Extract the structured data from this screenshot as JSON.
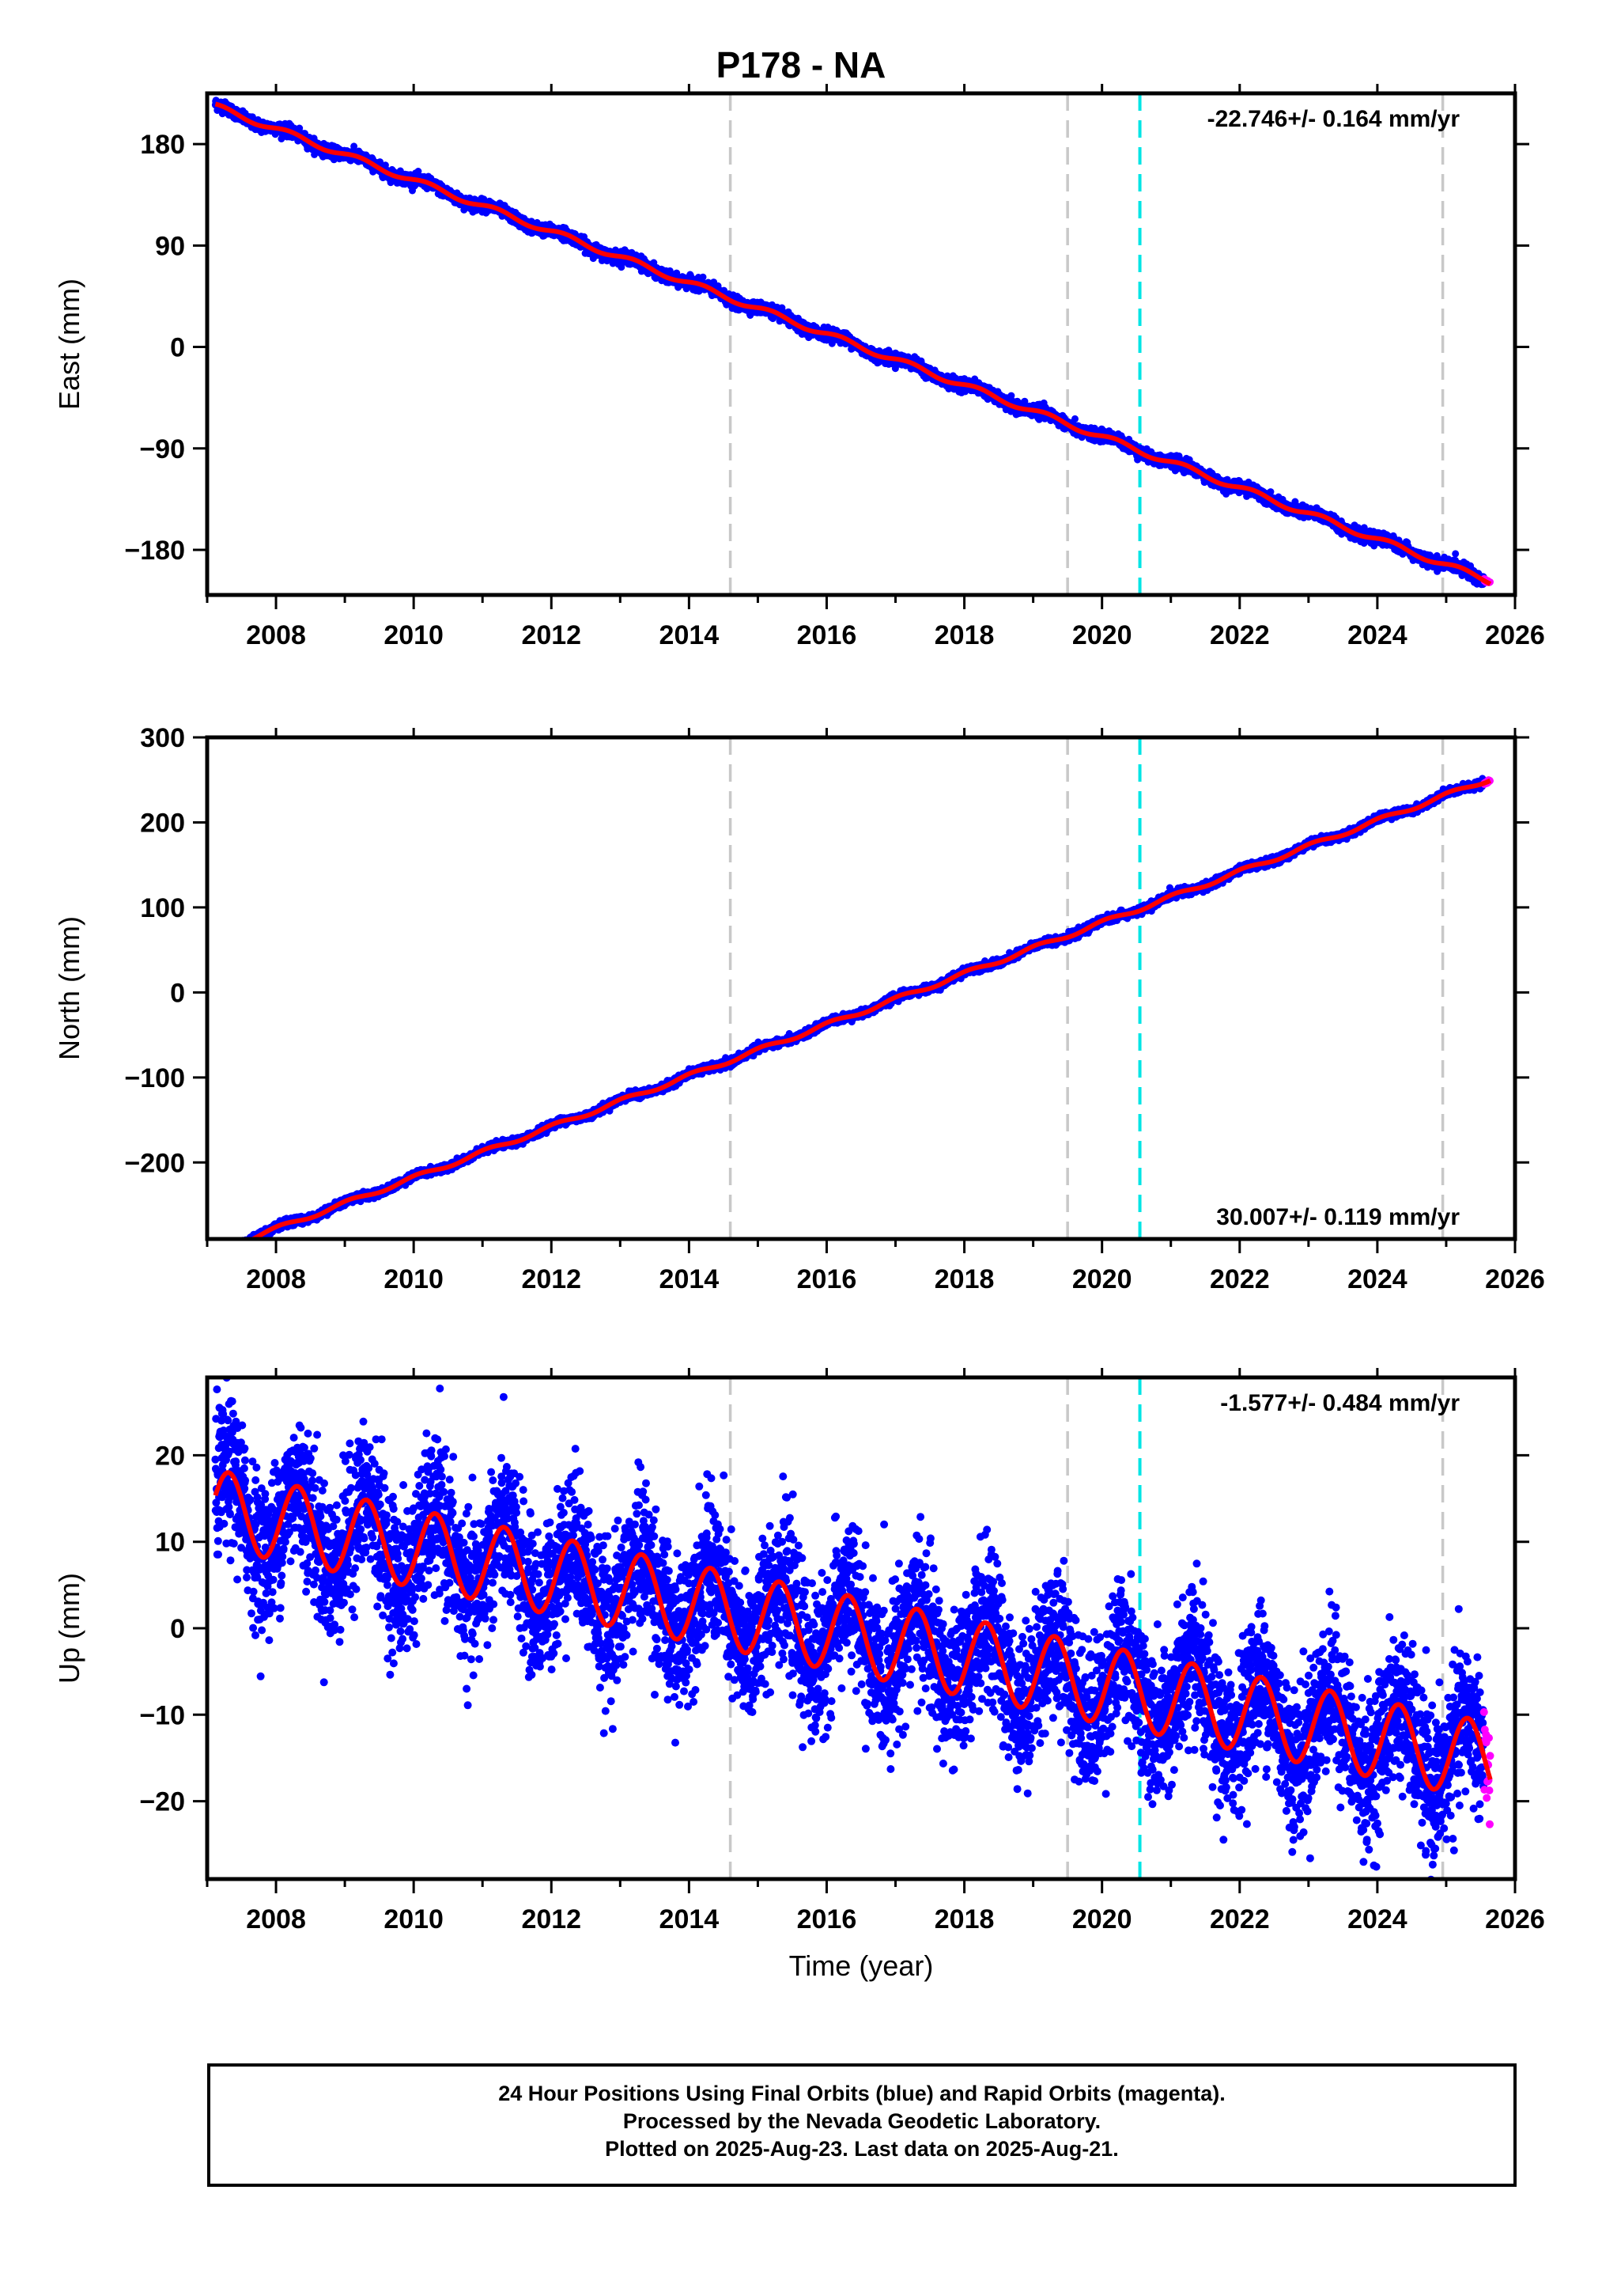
{
  "title": "P178 - NA",
  "colors": {
    "final": "#0000ff",
    "rapid": "#ff00ff",
    "model": "#ff0000",
    "equipment_line": "#c8c8c8",
    "earthquake_line": "#00e5e5",
    "frame": "#000000"
  },
  "vertical_markers": [
    {
      "year": 2014.6,
      "kind": "equipment"
    },
    {
      "year": 2019.5,
      "kind": "equipment"
    },
    {
      "year": 2020.55,
      "kind": "earthquake"
    },
    {
      "year": 2024.95,
      "kind": "equipment"
    }
  ],
  "chart_data": [
    {
      "type": "scatter",
      "panel": "east",
      "ylabel": "East (mm)",
      "xlim": [
        2007.0,
        2026.0
      ],
      "ylim": [
        -220,
        225
      ],
      "x_ticks": [
        2008,
        2010,
        2012,
        2014,
        2016,
        2018,
        2020,
        2022,
        2024,
        2026
      ],
      "x_tick_labels": [
        "2008",
        "2010",
        "2012",
        "2014",
        "2016",
        "2018",
        "2020",
        "2022",
        "2024",
        "2026"
      ],
      "y_ticks": [
        180,
        90,
        0,
        -90,
        -180
      ],
      "y_tick_labels": [
        "180",
        "90",
        "0",
        "−90",
        "−180"
      ],
      "rate_label": "-22.746+/- 0.164 mm/yr",
      "rate_label_position": "top-right",
      "trend": {
        "t0": 2016.5,
        "offset": 0,
        "rate": -22.746,
        "annual_amp": 2.5,
        "annual_phase": 0.3
      },
      "noise_mm": 2.5,
      "series": [
        {
          "role": "final",
          "x_range": [
            2007.12,
            2025.55
          ]
        },
        {
          "role": "rapid",
          "x_range": [
            2025.55,
            2025.64
          ]
        },
        {
          "role": "model",
          "x_range": [
            2007.12,
            2025.64
          ]
        }
      ]
    },
    {
      "type": "scatter",
      "panel": "north",
      "ylabel": "North (mm)",
      "xlim": [
        2007.0,
        2026.0
      ],
      "ylim": [
        -290,
        300
      ],
      "x_ticks": [
        2008,
        2010,
        2012,
        2014,
        2016,
        2018,
        2020,
        2022,
        2024,
        2026
      ],
      "x_tick_labels": [
        "2008",
        "2010",
        "2012",
        "2014",
        "2016",
        "2018",
        "2020",
        "2022",
        "2024",
        "2026"
      ],
      "y_ticks": [
        300,
        200,
        100,
        0,
        -100,
        -200
      ],
      "y_tick_labels": [
        "300",
        "200",
        "100",
        "0",
        "−100",
        "−200"
      ],
      "rate_label": "30.007+/- 0.119 mm/yr",
      "rate_label_position": "bottom-right",
      "trend": {
        "t0": 2016.5,
        "offset": -23,
        "rate": 30.007,
        "annual_amp": 2.5,
        "annual_phase": 1.2
      },
      "noise_mm": 2.2,
      "series": [
        {
          "role": "final",
          "x_range": [
            2007.12,
            2025.55
          ]
        },
        {
          "role": "rapid",
          "x_range": [
            2025.55,
            2025.64
          ]
        },
        {
          "role": "model",
          "x_range": [
            2007.12,
            2025.64
          ]
        }
      ]
    },
    {
      "type": "scatter",
      "panel": "up",
      "ylabel": "Up (mm)",
      "xlabel": "Time (year)",
      "xlim": [
        2007.0,
        2026.0
      ],
      "ylim": [
        -29,
        29
      ],
      "x_ticks": [
        2008,
        2010,
        2012,
        2014,
        2016,
        2018,
        2020,
        2022,
        2024,
        2026
      ],
      "x_tick_labels": [
        "2008",
        "2010",
        "2012",
        "2014",
        "2016",
        "2018",
        "2020",
        "2022",
        "2024",
        "2026"
      ],
      "y_ticks": [
        20,
        10,
        0,
        -10,
        -20
      ],
      "y_tick_labels": [
        "20",
        "10",
        "0",
        "−10",
        "−20"
      ],
      "rate_label": "-1.577+/- 0.484 mm/yr",
      "rate_label_position": "top-right",
      "trend": {
        "t0": 2016.5,
        "offset": -1.0,
        "rate": -1.577,
        "annual_amp": 4.5,
        "annual_phase": -0.4
      },
      "noise_mm": 4.2,
      "series": [
        {
          "role": "final",
          "x_range": [
            2007.12,
            2025.55
          ]
        },
        {
          "role": "rapid",
          "x_range": [
            2025.55,
            2025.64
          ]
        },
        {
          "role": "model",
          "x_range": [
            2007.12,
            2025.64
          ]
        }
      ]
    }
  ],
  "caption": {
    "lines": [
      "24 Hour Positions Using Final Orbits (blue) and Rapid Orbits (magenta).",
      "Processed by the Nevada Geodetic Laboratory.",
      "Plotted on 2025-Aug-23. Last data on 2025-Aug-21."
    ]
  }
}
